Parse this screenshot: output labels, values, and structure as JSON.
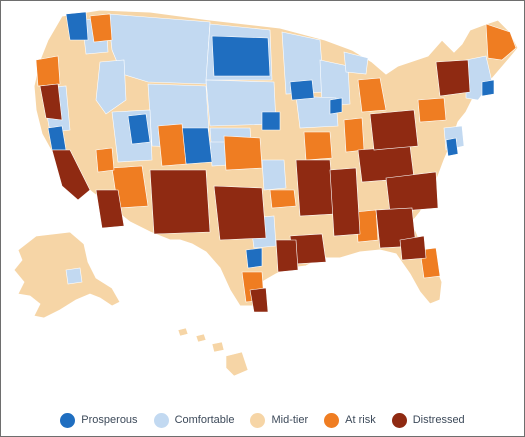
{
  "colors": {
    "prosperous": "#1f6ec0",
    "comfortable": "#c2d9f1",
    "mid_tier": "#f6d5a6",
    "at_risk": "#ef7d22",
    "distressed": "#8f2a12",
    "border": "#ffffff",
    "frame": "#6e6e6e",
    "legend_text": "#3d4a5a"
  },
  "legend": [
    {
      "label": "Prosperous",
      "color": "#1f6ec0"
    },
    {
      "label": "Comfortable",
      "color": "#c2d9f1"
    },
    {
      "label": "Mid-tier",
      "color": "#f6d5a6"
    },
    {
      "label": "At risk",
      "color": "#ef7d22"
    },
    {
      "label": "Distressed",
      "color": "#8f2a12"
    }
  ]
}
